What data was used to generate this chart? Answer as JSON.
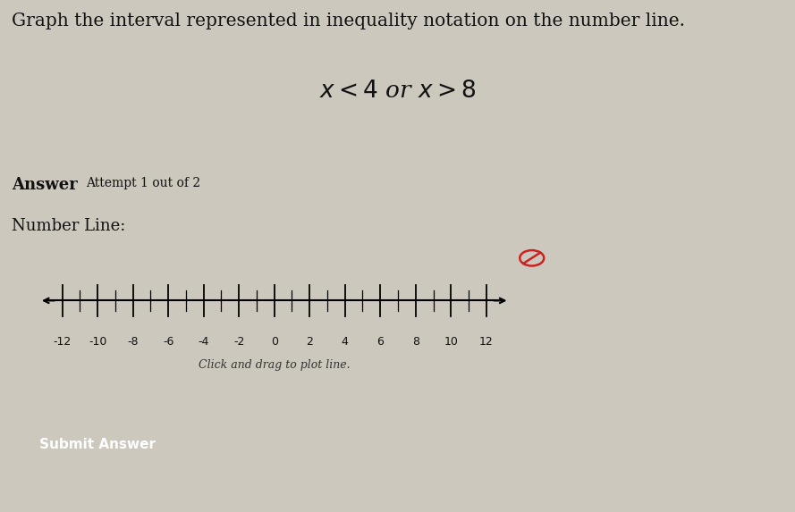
{
  "title": "Graph the interval represented in inequality notation on the number line.",
  "inequality": "$x < 4$ or $x > 8$",
  "answer_label": "Answer",
  "attempt_label": "Attempt 1 out of 2",
  "numberline_label": "Number Line:",
  "click_drag_text": "Click and drag to plot line.",
  "submit_button_text": "Submit Answer",
  "submit_button_color": "#2255cc",
  "submit_button_text_color": "#ffffff",
  "x_min": -13.5,
  "x_max": 13.5,
  "tick_values": [
    -12,
    -10,
    -8,
    -6,
    -4,
    -2,
    0,
    2,
    4,
    6,
    8,
    10,
    12
  ],
  "background_color": "#ddd8ce",
  "numberline_box_bg": "#ddd8ce",
  "page_bg": "#cdc8be",
  "title_fontsize": 14.5,
  "inequality_fontsize": 19,
  "label_fontsize": 13,
  "answer_fontsize": 13,
  "attempt_fontsize": 10,
  "tick_fontsize": 9,
  "click_drag_fontsize": 9
}
